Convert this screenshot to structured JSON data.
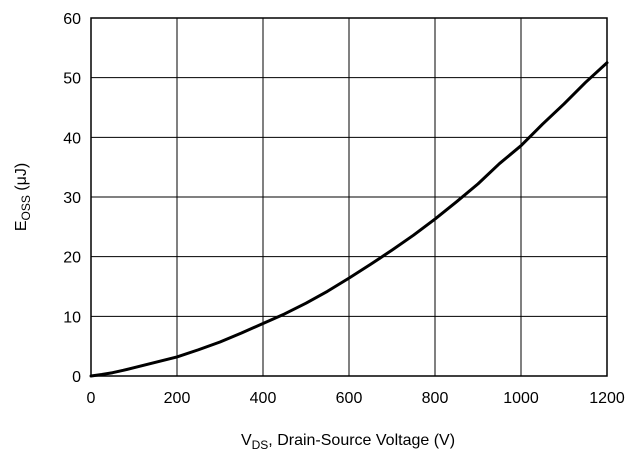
{
  "chart_data": {
    "type": "line",
    "title": "",
    "xlabel": {
      "main": "V",
      "sub": "DS",
      "rest": ", Drain-Source Voltage (V)"
    },
    "ylabel": {
      "main": "E",
      "sub": "OSS",
      "rest": " (μJ)"
    },
    "xlim": [
      0,
      1200
    ],
    "ylim": [
      0,
      60
    ],
    "x_ticks": [
      "0",
      "200",
      "400",
      "600",
      "800",
      "1000",
      "1200"
    ],
    "y_ticks": [
      "0",
      "10",
      "20",
      "30",
      "40",
      "50",
      "60"
    ],
    "grid": true,
    "series": [
      {
        "color": "#000000",
        "x": [
          0,
          25,
          50,
          75,
          100,
          150,
          200,
          250,
          300,
          350,
          400,
          450,
          500,
          550,
          600,
          650,
          700,
          750,
          800,
          850,
          900,
          950,
          1000,
          1050,
          1100,
          1150,
          1200
        ],
        "y": [
          0,
          0.25,
          0.55,
          0.95,
          1.4,
          2.3,
          3.2,
          4.4,
          5.7,
          7.2,
          8.8,
          10.4,
          12.2,
          14.2,
          16.4,
          18.7,
          21.1,
          23.6,
          26.3,
          29.2,
          32.2,
          35.6,
          38.6,
          42.2,
          45.6,
          49.2,
          52.5
        ]
      }
    ]
  }
}
